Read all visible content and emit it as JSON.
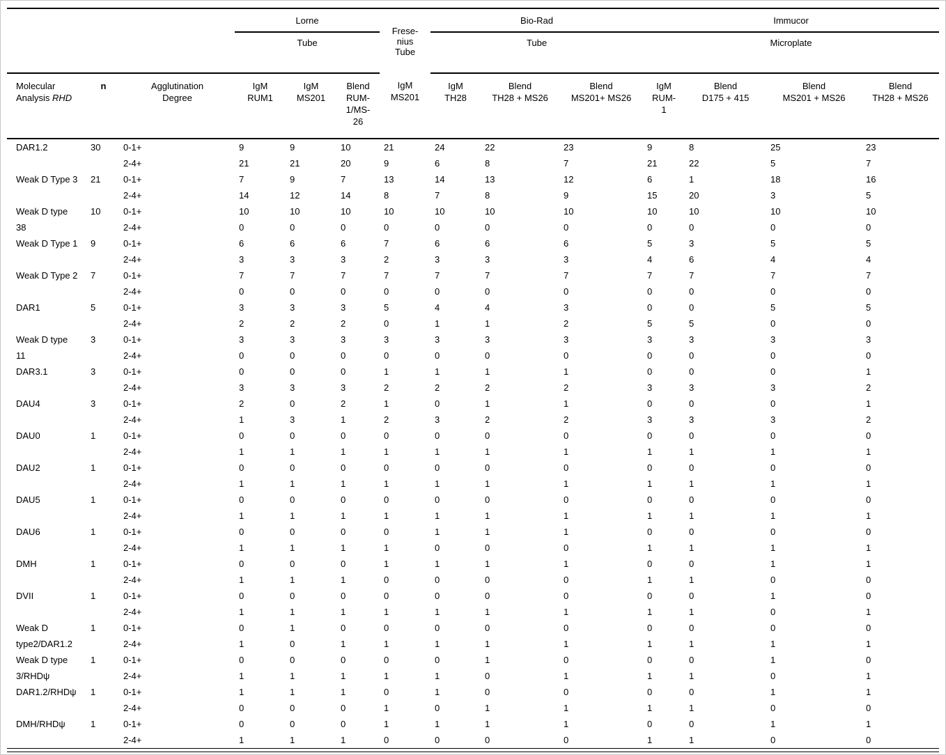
{
  "table": {
    "groups": [
      {
        "name": "Lorne",
        "sub": "Tube",
        "span": 3
      },
      {
        "name": "Frese-\nnius\nTube",
        "sub": "",
        "span": 1
      },
      {
        "name": "Bio-Rad",
        "sub": "Tube",
        "span": 3
      },
      {
        "name": "Immucor",
        "sub": "Microplate",
        "span": 4
      }
    ],
    "col_headers": {
      "molecular": "Molecular Analysis ",
      "molecular_italic": "RHD",
      "n": "n",
      "agglutination": "Agglutination\nDegree",
      "assays": [
        "IgM\nRUM1",
        "IgM\nMS201",
        "Blend\nRUM-\n1/MS-\n26",
        "IgM\nMS201",
        "IgM\nTH28",
        "Blend\nTH28 + MS26",
        "Blend\nMS201+ MS26",
        "IgM\nRUM-\n1",
        "Blend\nD175 + 415",
        "Blend\nMS201 + MS26",
        "Blend\nTH28 + MS26"
      ]
    },
    "rows": [
      {
        "label": "DAR1.2",
        "n": "30",
        "lines": [
          {
            "degree": "0-1+",
            "values": [
              "9",
              "9",
              "10",
              "21",
              "24",
              "22",
              "23",
              "9",
              "8",
              "25",
              "23"
            ]
          },
          {
            "degree": "2-4+",
            "values": [
              "21",
              "21",
              "20",
              "9",
              "6",
              "8",
              "7",
              "21",
              "22",
              "5",
              "7"
            ]
          }
        ]
      },
      {
        "label": "Weak D Type 3",
        "n": "21",
        "lines": [
          {
            "degree": "0-1+",
            "values": [
              "7",
              "9",
              "7",
              "13",
              "14",
              "13",
              "12",
              "6",
              "1",
              "18",
              "16"
            ]
          },
          {
            "degree": "2-4+",
            "values": [
              "14",
              "12",
              "14",
              "8",
              "7",
              "8",
              "9",
              "15",
              "20",
              "3",
              "5"
            ]
          }
        ]
      },
      {
        "label": "Weak D type 38",
        "n": "10",
        "lines": [
          {
            "degree": "0-1+",
            "values": [
              "10",
              "10",
              "10",
              "10",
              "10",
              "10",
              "10",
              "10",
              "10",
              "10",
              "10"
            ]
          },
          {
            "degree": "2-4+",
            "values": [
              "0",
              "0",
              "0",
              "0",
              "0",
              "0",
              "0",
              "0",
              "0",
              "0",
              "0"
            ]
          }
        ]
      },
      {
        "label": "Weak D Type 1",
        "n": "9",
        "lines": [
          {
            "degree": "0-1+",
            "values": [
              "6",
              "6",
              "6",
              "7",
              "6",
              "6",
              "6",
              "5",
              "3",
              "5",
              "5"
            ]
          },
          {
            "degree": "2-4+",
            "values": [
              "3",
              "3",
              "3",
              "2",
              "3",
              "3",
              "3",
              "4",
              "6",
              "4",
              "4"
            ]
          }
        ]
      },
      {
        "label": "Weak D Type 2",
        "n": "7",
        "lines": [
          {
            "degree": "0-1+",
            "values": [
              "7",
              "7",
              "7",
              "7",
              "7",
              "7",
              "7",
              "7",
              "7",
              "7",
              "7"
            ]
          },
          {
            "degree": "2-4+",
            "values": [
              "0",
              "0",
              "0",
              "0",
              "0",
              "0",
              "0",
              "0",
              "0",
              "0",
              "0"
            ]
          }
        ]
      },
      {
        "label": "DAR1",
        "n": "5",
        "lines": [
          {
            "degree": "0-1+",
            "values": [
              "3",
              "3",
              "3",
              "5",
              "4",
              "4",
              "3",
              "0",
              "0",
              "5",
              "5"
            ]
          },
          {
            "degree": "2-4+",
            "values": [
              "2",
              "2",
              "2",
              "0",
              "1",
              "1",
              "2",
              "5",
              "5",
              "0",
              "0"
            ]
          }
        ]
      },
      {
        "label": "Weak D type 11",
        "n": "3",
        "lines": [
          {
            "degree": "0-1+",
            "values": [
              "3",
              "3",
              "3",
              "3",
              "3",
              "3",
              "3",
              "3",
              "3",
              "3",
              "3"
            ]
          },
          {
            "degree": "2-4+",
            "values": [
              "0",
              "0",
              "0",
              "0",
              "0",
              "0",
              "0",
              "0",
              "0",
              "0",
              "0"
            ]
          }
        ]
      },
      {
        "label": "DAR3.1",
        "n": "3",
        "lines": [
          {
            "degree": "0-1+",
            "values": [
              "0",
              "0",
              "0",
              "1",
              "1",
              "1",
              "1",
              "0",
              "0",
              "0",
              "1"
            ]
          },
          {
            "degree": "2-4+",
            "values": [
              "3",
              "3",
              "3",
              "2",
              "2",
              "2",
              "2",
              "3",
              "3",
              "3",
              "2"
            ]
          }
        ]
      },
      {
        "label": "DAU4",
        "n": "3",
        "lines": [
          {
            "degree": "0-1+",
            "values": [
              "2",
              "0",
              "2",
              "1",
              "0",
              "1",
              "1",
              "0",
              "0",
              "0",
              "1"
            ]
          },
          {
            "degree": "2-4+",
            "values": [
              "1",
              "3",
              "1",
              "2",
              "3",
              "2",
              "2",
              "3",
              "3",
              "3",
              "2"
            ]
          }
        ]
      },
      {
        "label": "DAU0",
        "n": "1",
        "lines": [
          {
            "degree": "0-1+",
            "values": [
              "0",
              "0",
              "0",
              "0",
              "0",
              "0",
              "0",
              "0",
              "0",
              "0",
              "0"
            ]
          },
          {
            "degree": "2-4+",
            "values": [
              "1",
              "1",
              "1",
              "1",
              "1",
              "1",
              "1",
              "1",
              "1",
              "1",
              "1"
            ]
          }
        ]
      },
      {
        "label": "DAU2",
        "n": "1",
        "lines": [
          {
            "degree": "0-1+",
            "values": [
              "0",
              "0",
              "0",
              "0",
              "0",
              "0",
              "0",
              "0",
              "0",
              "0",
              "0"
            ]
          },
          {
            "degree": "2-4+",
            "values": [
              "1",
              "1",
              "1",
              "1",
              "1",
              "1",
              "1",
              "1",
              "1",
              "1",
              "1"
            ]
          }
        ]
      },
      {
        "label": "DAU5",
        "n": "1",
        "lines": [
          {
            "degree": "0-1+",
            "values": [
              "0",
              "0",
              "0",
              "0",
              "0",
              "0",
              "0",
              "0",
              "0",
              "0",
              "0"
            ]
          },
          {
            "degree": "2-4+",
            "values": [
              "1",
              "1",
              "1",
              "1",
              "1",
              "1",
              "1",
              "1",
              "1",
              "1",
              "1"
            ]
          }
        ]
      },
      {
        "label": "DAU6",
        "n": "1",
        "lines": [
          {
            "degree": "0-1+",
            "values": [
              "0",
              "0",
              "0",
              "0",
              "1",
              "1",
              "1",
              "0",
              "0",
              "0",
              "0"
            ]
          },
          {
            "degree": "2-4+",
            "values": [
              "1",
              "1",
              "1",
              "1",
              "0",
              "0",
              "0",
              "1",
              "1",
              "1",
              "1"
            ]
          }
        ]
      },
      {
        "label": "DMH",
        "n": "1",
        "lines": [
          {
            "degree": "0-1+",
            "values": [
              "0",
              "0",
              "0",
              "1",
              "1",
              "1",
              "1",
              "0",
              "0",
              "1",
              "1"
            ]
          },
          {
            "degree": "2-4+",
            "values": [
              "1",
              "1",
              "1",
              "0",
              "0",
              "0",
              "0",
              "1",
              "1",
              "0",
              "0"
            ]
          }
        ]
      },
      {
        "label": "DVII",
        "n": "1",
        "lines": [
          {
            "degree": "0-1+",
            "values": [
              "0",
              "0",
              "0",
              "0",
              "0",
              "0",
              "0",
              "0",
              "0",
              "1",
              "0"
            ]
          },
          {
            "degree": "2-4+",
            "values": [
              "1",
              "1",
              "1",
              "1",
              "1",
              "1",
              "1",
              "1",
              "1",
              "0",
              "1"
            ]
          }
        ]
      },
      {
        "label": "Weak D type2/DAR1.2",
        "n": "1",
        "lines": [
          {
            "degree": "0-1+",
            "values": [
              "0",
              "1",
              "0",
              "0",
              "0",
              "0",
              "0",
              "0",
              "0",
              "0",
              "0"
            ]
          },
          {
            "degree": "2-4+",
            "values": [
              "1",
              "0",
              "1",
              "1",
              "1",
              "1",
              "1",
              "1",
              "1",
              "1",
              "1"
            ]
          }
        ]
      },
      {
        "label": "Weak D type 3/RHDψ",
        "n": "1",
        "lines": [
          {
            "degree": "0-1+",
            "values": [
              "0",
              "0",
              "0",
              "0",
              "0",
              "1",
              "0",
              "0",
              "0",
              "1",
              "0"
            ]
          },
          {
            "degree": "2-4+",
            "values": [
              "1",
              "1",
              "1",
              "1",
              "1",
              "0",
              "1",
              "1",
              "1",
              "0",
              "1"
            ]
          }
        ]
      },
      {
        "label": "DAR1.2/RHDψ",
        "n": "1",
        "lines": [
          {
            "degree": "0-1+",
            "values": [
              "1",
              "1",
              "1",
              "0",
              "1",
              "0",
              "0",
              "0",
              "0",
              "1",
              "1"
            ]
          },
          {
            "degree": "2-4+",
            "values": [
              "0",
              "0",
              "0",
              "1",
              "0",
              "1",
              "1",
              "1",
              "1",
              "0",
              "0"
            ]
          }
        ]
      },
      {
        "label": "DMH/RHDψ",
        "n": "1",
        "lines": [
          {
            "degree": "0-1+",
            "values": [
              "0",
              "0",
              "0",
              "1",
              "1",
              "1",
              "1",
              "0",
              "0",
              "1",
              "1"
            ]
          },
          {
            "degree": "2-4+",
            "values": [
              "1",
              "1",
              "1",
              "0",
              "0",
              "0",
              "0",
              "1",
              "1",
              "0",
              "0"
            ]
          }
        ]
      }
    ]
  }
}
